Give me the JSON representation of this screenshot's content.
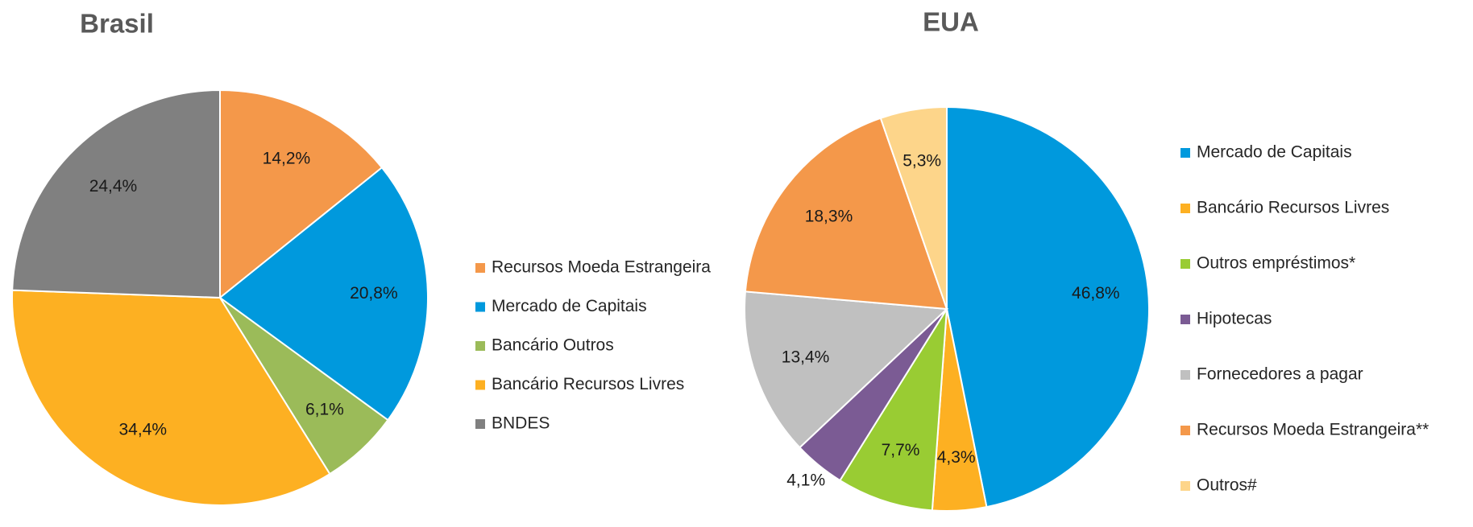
{
  "chart_data": [
    {
      "type": "pie",
      "title": "Brasil",
      "categories": [
        "Recursos Moeda Estrangeira",
        "Mercado de Capitais",
        "Bancário Outros",
        "Bancário Recursos Livres",
        "BNDES"
      ],
      "values": [
        14.2,
        20.8,
        6.1,
        34.4,
        24.4
      ],
      "value_labels": [
        "14,2%",
        "20,8%",
        "6,1%",
        "34,4%",
        "24,4%"
      ],
      "colors": [
        "#f4984a",
        "#0099dd",
        "#9bbb59",
        "#fdb022",
        "#808080"
      ]
    },
    {
      "type": "pie",
      "title": "EUA",
      "categories": [
        "Mercado de Capitais",
        "Bancário Recursos Livres",
        "Outros empréstimos*",
        "Hipotecas",
        "Fornecedores a pagar",
        "Recursos Moeda Estrangeira**",
        "Outros#"
      ],
      "values": [
        46.8,
        4.3,
        7.7,
        4.1,
        13.4,
        18.3,
        5.3
      ],
      "value_labels": [
        "46,8%",
        "4,3%",
        "7,7%",
        "4,1%",
        "13,4%",
        "18,3%",
        "5,3%"
      ],
      "colors": [
        "#0099dd",
        "#fdb022",
        "#99cc33",
        "#7b5b94",
        "#c0c0c0",
        "#f4984a",
        "#fdd58a"
      ]
    }
  ]
}
